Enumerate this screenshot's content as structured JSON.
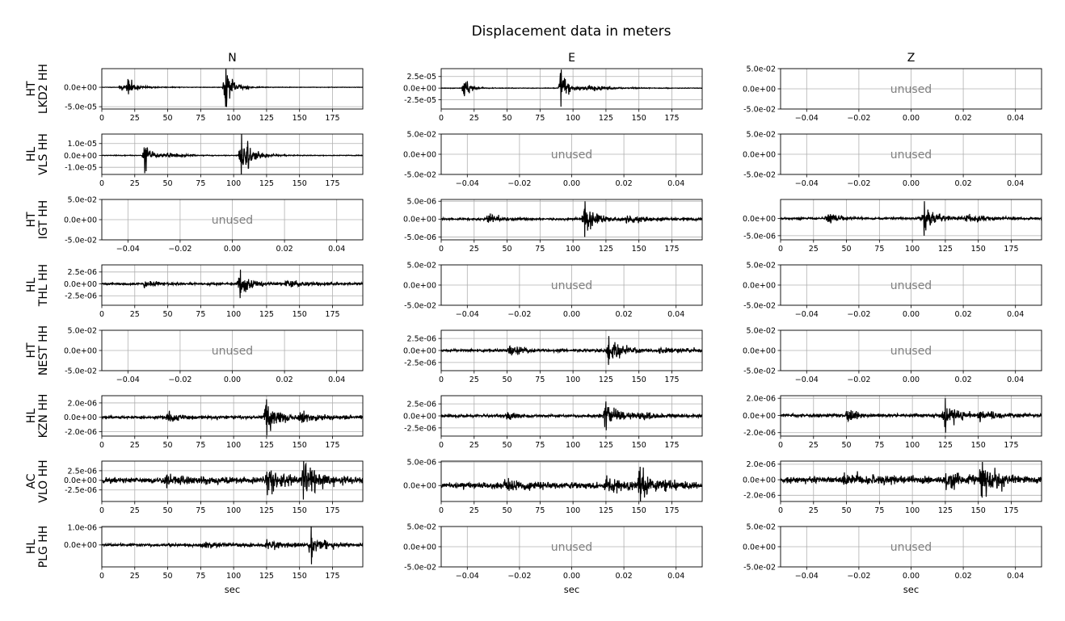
{
  "figure": {
    "title": "Displacement data in meters",
    "unused_label": "unused",
    "x_axis_label": "sec",
    "trace_color": "#000000",
    "grid_color": "#b0b0b0",
    "unused_text_color": "#808080"
  },
  "columns": [
    "N",
    "E",
    "Z"
  ],
  "stations": [
    [
      "HT",
      "LKD2 HH"
    ],
    [
      "HL",
      "VLS HH"
    ],
    [
      "HT",
      "IGT HH"
    ],
    [
      "HL",
      "THL HH"
    ],
    [
      "HT",
      "NEST HH"
    ],
    [
      "HL",
      "KZN HH"
    ],
    [
      "AC",
      "VLO HH"
    ],
    [
      "HL",
      "PLG HH"
    ]
  ],
  "chart_data": {
    "type": "line",
    "title": "Displacement data in meters",
    "grid": true,
    "unused_panel": {
      "xlim": [
        -0.05,
        0.05
      ],
      "ylim": [
        -0.05,
        0.05
      ],
      "xticks": [
        "−0.04",
        "−0.02",
        "0.00",
        "0.02",
        "0.04"
      ],
      "yticks": [
        "5.0e-02",
        "0.0e+00",
        "-5.0e-02"
      ]
    },
    "time_axis": {
      "xlim": [
        0,
        198
      ],
      "xticks": [
        "0",
        "25",
        "50",
        "75",
        "100",
        "125",
        "150",
        "175"
      ]
    },
    "panels": [
      [
        {
          "used": true,
          "ylim": [
            -5.6e-05,
            4.8e-05
          ],
          "yticks": [
            {
              "v": 0,
              "t": "0.0e+00"
            },
            {
              "v": -5e-05,
              "t": "-5.0e-05"
            }
          ],
          "bursts": [
            [
              20,
              4,
              1.8e-05,
              8e-06
            ],
            [
              93,
              6,
              4.4e-05,
              5e-05
            ],
            [
              14,
              14,
              6e-06,
              0
            ]
          ],
          "noise": 5e-07,
          "seed": 11
        },
        {
          "used": true,
          "ylim": [
            -4.5e-05,
            4.2e-05
          ],
          "yticks": [
            {
              "v": 2.5e-05,
              "t": "2.5e-05"
            },
            {
              "v": 0,
              "t": "0.0e+00"
            },
            {
              "v": -2.5e-05,
              "t": "-2.5e-05"
            }
          ],
          "bursts": [
            [
              17,
              4,
              2.5e-05,
              1e-05
            ],
            [
              90,
              6,
              3.5e-05,
              4e-05
            ],
            [
              110,
              14,
              6e-06,
              0
            ]
          ],
          "noise": 5e-07,
          "seed": 12
        },
        {
          "used": false
        }
      ],
      [
        {
          "used": true,
          "ylim": [
            -1.6e-05,
            1.8e-05
          ],
          "yticks": [
            {
              "v": 1e-05,
              "t": "1.0e-05"
            },
            {
              "v": 0,
              "t": "0.0e+00"
            },
            {
              "v": -1e-05,
              "t": "-1.0e-05"
            }
          ],
          "bursts": [
            [
              32,
              6,
              1e-05,
              5e-06
            ],
            [
              105,
              8,
              1.6e-05,
              1.8e-05
            ],
            [
              50,
              10,
              2e-06,
              0
            ]
          ],
          "noise": 2.5e-07,
          "seed": 21
        },
        {
          "used": false
        },
        {
          "used": false
        }
      ],
      [
        {
          "used": false
        },
        {
          "used": true,
          "ylim": [
            -5.8e-06,
            5.5e-06
          ],
          "yticks": [
            {
              "v": 5e-06,
              "t": "5.0e-06"
            },
            {
              "v": 0,
              "t": "0.0e+00"
            },
            {
              "v": -5e-06,
              "t": "-5.0e-06"
            }
          ],
          "bursts": [
            [
              35,
              8,
              1.6e-06,
              1e-06
            ],
            [
              108,
              10,
              3e-06,
              5e-06
            ],
            [
              140,
              16,
              7e-07,
              0
            ]
          ],
          "noise": 2.5e-07,
          "seed": 31
        },
        {
          "used": true,
          "ylim": [
            -6.2e-06,
            5.5e-06
          ],
          "yticks": [
            {
              "v": 0,
              "t": "0.0e+00"
            },
            {
              "v": -5e-06,
              "t": "-5.0e-06"
            }
          ],
          "bursts": [
            [
              35,
              8,
              1.6e-06,
              1e-06
            ],
            [
              108,
              10,
              3e-06,
              5e-06
            ],
            [
              140,
              16,
              8e-07,
              0
            ]
          ],
          "noise": 2.5e-07,
          "seed": 32
        }
      ],
      [
        {
          "used": true,
          "ylim": [
            -4.5e-06,
            4e-06
          ],
          "yticks": [
            {
              "v": 2.5e-06,
              "t": "2.5e-06"
            },
            {
              "v": 0,
              "t": "0.0e+00"
            },
            {
              "v": -2.5e-06,
              "t": "-2.5e-06"
            }
          ],
          "bursts": [
            [
              32,
              8,
              7e-07,
              5e-07
            ],
            [
              104,
              10,
              2e-06,
              3e-06
            ],
            [
              140,
              16,
              6e-07,
              0
            ]
          ],
          "noise": 1.8e-07,
          "seed": 41
        },
        {
          "used": false
        },
        {
          "used": false
        }
      ],
      [
        {
          "used": false
        },
        {
          "used": true,
          "ylim": [
            -4.2e-06,
            4.2e-06
          ],
          "yticks": [
            {
              "v": 2.5e-06,
              "t": "2.5e-06"
            },
            {
              "v": 0,
              "t": "0.0e+00"
            },
            {
              "v": -2.5e-06,
              "t": "-2.5e-06"
            }
          ],
          "bursts": [
            [
              52,
              8,
              1.3e-06,
              6e-07
            ],
            [
              126,
              10,
              2.4e-06,
              3e-06
            ],
            [
              165,
              16,
              4e-07,
              0
            ]
          ],
          "noise": 2.3e-07,
          "seed": 51
        },
        {
          "used": false
        }
      ],
      [
        {
          "used": true,
          "ylim": [
            -2.6e-06,
            3e-06
          ],
          "yticks": [
            {
              "v": 2e-06,
              "t": "2.0e-06"
            },
            {
              "v": 0,
              "t": "0.0e+00"
            },
            {
              "v": -2e-06,
              "t": "-2.0e-06"
            }
          ],
          "bursts": [
            [
              50,
              6,
              6e-07,
              5e-07
            ],
            [
              124,
              9,
              1.6e-06,
              2.5e-06
            ],
            [
              150,
              14,
              5e-07,
              0
            ]
          ],
          "noise": 1.8e-07,
          "seed": 61
        },
        {
          "used": true,
          "ylim": [
            -4.2e-06,
            4.2e-06
          ],
          "yticks": [
            {
              "v": 2.5e-06,
              "t": "2.5e-06"
            },
            {
              "v": 0,
              "t": "0.0e+00"
            },
            {
              "v": -2.5e-06,
              "t": "-2.5e-06"
            }
          ],
          "bursts": [
            [
              50,
              6,
              1.1e-06,
              5e-07
            ],
            [
              124,
              9,
              2.4e-06,
              3e-06
            ],
            [
              150,
              14,
              6e-07,
              0
            ]
          ],
          "noise": 2.3e-07,
          "seed": 62
        },
        {
          "used": true,
          "ylim": [
            -2.4e-06,
            2.3e-06
          ],
          "yticks": [
            {
              "v": 2e-06,
              "t": "2.0e-06"
            },
            {
              "v": 0,
              "t": "0.0e+00"
            },
            {
              "v": -2e-06,
              "t": "-2.0e-06"
            }
          ],
          "bursts": [
            [
              50,
              6,
              6e-07,
              5e-07
            ],
            [
              124,
              9,
              1.3e-06,
              2e-06
            ],
            [
              150,
              14,
              4e-07,
              0
            ]
          ],
          "noise": 1.5e-07,
          "seed": 63
        }
      ],
      [
        {
          "used": true,
          "ylim": [
            -5.5e-06,
            5e-06
          ],
          "yticks": [
            {
              "v": 2.5e-06,
              "t": "2.5e-06"
            },
            {
              "v": 0,
              "t": "0.0e+00"
            },
            {
              "v": -2.5e-06,
              "t": "-2.5e-06"
            }
          ],
          "bursts": [
            [
              48,
              20,
              1.1e-06,
              0
            ],
            [
              125,
              12,
              2e-06,
              0
            ],
            [
              152,
              12,
              3.2e-06,
              5e-06
            ]
          ],
          "noise": 6.5e-07,
          "seed": 71
        },
        {
          "used": true,
          "ylim": [
            -3.4e-06,
            5.2e-06
          ],
          "yticks": [
            {
              "v": 5e-06,
              "t": "5.0e-06"
            },
            {
              "v": 0,
              "t": "0.0e+00"
            }
          ],
          "bursts": [
            [
              48,
              20,
              7e-07,
              0
            ],
            [
              125,
              12,
              1.4e-06,
              0
            ],
            [
              150,
              12,
              2.3e-06,
              4e-06
            ]
          ],
          "noise": 5e-07,
          "seed": 72
        },
        {
          "used": true,
          "ylim": [
            -2.8e-06,
            2.4e-06
          ],
          "yticks": [
            {
              "v": 2e-06,
              "t": "2.0e-06"
            },
            {
              "v": 0,
              "t": "0.0e+00"
            },
            {
              "v": -2e-06,
              "t": "-2.0e-06"
            }
          ],
          "bursts": [
            [
              48,
              20,
              5e-07,
              0
            ],
            [
              125,
              12,
              1e-06,
              0
            ],
            [
              152,
              12,
              1.6e-06,
              2.3e-06
            ]
          ],
          "noise": 3.5e-07,
          "seed": 73
        }
      ],
      [
        {
          "used": true,
          "ylim": [
            -1.25e-06,
            1.05e-06
          ],
          "yticks": [
            {
              "v": 1e-06,
              "t": "1.0e-06"
            },
            {
              "v": 0,
              "t": "0.0e+00"
            }
          ],
          "bursts": [
            [
              75,
              20,
              1.3e-07,
              0
            ],
            [
              125,
              14,
              2.2e-07,
              0
            ],
            [
              158,
              10,
              5e-07,
              1.1e-06
            ]
          ],
          "noise": 6e-08,
          "seed": 81
        },
        {
          "used": false
        },
        {
          "used": false
        }
      ]
    ]
  }
}
